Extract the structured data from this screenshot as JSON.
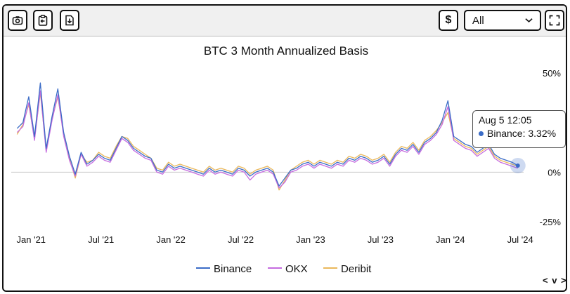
{
  "toolbar": {
    "camera_icon": "camera-icon",
    "clipboard_icon": "clipboard-copy-icon",
    "download_icon": "download-file-icon",
    "currency_label": "$",
    "select_value": "All",
    "expand_icon": "fullscreen-icon"
  },
  "tooltip": {
    "date": "Aug 5 12:05",
    "series": "Binance",
    "value": "3.32%",
    "text": "Binance: 3.32%"
  },
  "nav_label": "< v >",
  "colors": {
    "binance": "#3b6cc7",
    "okx": "#c56bdf",
    "deribit": "#eab85b",
    "zero_line": "#c8c8c8"
  },
  "chart_data": {
    "type": "line",
    "title": "BTC 3 Month Annualized Basis",
    "xlabel": "",
    "ylabel": "",
    "x_ticks": [
      "Jan '21",
      "Jul '21",
      "Jan '22",
      "Jul '22",
      "Jan '23",
      "Jul '23",
      "Jan '24",
      "Jul '24"
    ],
    "x_tick_positions": [
      0,
      6,
      12,
      18,
      24,
      30,
      36,
      42
    ],
    "y_ticks": [
      "50%",
      "0%",
      "-25%"
    ],
    "y_tick_values": [
      50,
      0,
      -25
    ],
    "ylim": [
      -25,
      52
    ],
    "xlim": [
      -0.5,
      43.8
    ],
    "legend": [
      "Binance",
      "OKX",
      "Deribit"
    ],
    "legend_position": "bottom-center",
    "x": [
      0,
      0.5,
      1,
      1.5,
      2,
      2.5,
      3,
      3.5,
      4,
      4.5,
      5,
      5.5,
      6,
      6.5,
      7,
      7.5,
      8,
      8.5,
      9,
      9.5,
      10,
      10.5,
      11,
      11.5,
      12,
      12.5,
      13,
      13.5,
      14,
      14.5,
      15,
      15.5,
      16,
      16.5,
      17,
      17.5,
      18,
      18.5,
      19,
      19.5,
      20,
      20.5,
      21,
      21.5,
      22,
      22.5,
      23,
      23.5,
      24,
      24.5,
      25,
      25.5,
      26,
      26.5,
      27,
      27.5,
      28,
      28.5,
      29,
      29.5,
      30,
      30.5,
      31,
      31.5,
      32,
      32.5,
      33,
      33.5,
      34,
      34.5,
      35,
      35.5,
      36,
      36.5,
      37,
      37.5,
      38,
      38.5,
      39,
      39.5,
      40,
      40.5,
      41,
      41.5,
      42,
      42.5,
      43
    ],
    "series": [
      {
        "name": "Binance",
        "values": [
          22,
          25,
          38,
          18,
          45,
          12,
          28,
          42,
          20,
          8,
          -1,
          10,
          4,
          6,
          9,
          7,
          6,
          12,
          18,
          16,
          12,
          10,
          8,
          7,
          1,
          0,
          4,
          2,
          3,
          2,
          1,
          0,
          -1,
          2,
          0,
          1,
          0,
          -1,
          2,
          1,
          -2,
          0,
          1,
          2,
          0,
          -7,
          -3,
          1,
          2,
          4,
          5,
          3,
          5,
          4,
          3,
          5,
          4,
          7,
          6,
          8,
          7,
          5,
          6,
          8,
          4,
          9,
          12,
          11,
          14,
          10,
          15,
          17,
          20,
          26,
          36,
          18,
          16,
          14,
          13,
          10,
          12,
          14,
          9,
          7,
          6,
          5,
          3.32
        ]
      },
      {
        "name": "OKX",
        "values": [
          20,
          23,
          35,
          16,
          41,
          10,
          26,
          39,
          18,
          6,
          -2,
          9,
          3,
          5,
          8,
          6,
          5,
          11,
          17,
          15,
          11,
          9,
          7,
          6,
          0,
          -1,
          3,
          1,
          2,
          1,
          0,
          -1,
          -2,
          1,
          -1,
          0,
          -1,
          -2,
          1,
          0,
          -4,
          -1,
          0,
          1,
          -1,
          -8,
          -5,
          0,
          1,
          3,
          4,
          2,
          4,
          3,
          2,
          4,
          3,
          6,
          5,
          7,
          6,
          4,
          5,
          7,
          3,
          8,
          11,
          10,
          13,
          9,
          14,
          16,
          19,
          24,
          33,
          16,
          14,
          12,
          11,
          8,
          10,
          12,
          7,
          5,
          4,
          3,
          2
        ]
      },
      {
        "name": "Deribit",
        "values": [
          19,
          24,
          34,
          17,
          40,
          11,
          27,
          38,
          19,
          7,
          -3,
          9,
          5,
          6,
          10,
          8,
          7,
          13,
          18,
          17,
          13,
          11,
          9,
          7,
          2,
          1,
          5,
          3,
          4,
          3,
          2,
          1,
          0,
          3,
          1,
          2,
          1,
          0,
          3,
          2,
          -1,
          1,
          2,
          3,
          1,
          -9,
          -4,
          1,
          3,
          5,
          6,
          4,
          6,
          5,
          4,
          6,
          5,
          8,
          7,
          9,
          8,
          6,
          7,
          9,
          5,
          10,
          13,
          12,
          15,
          11,
          16,
          18,
          21,
          25,
          30,
          17,
          15,
          13,
          12,
          9,
          11,
          13,
          8,
          6,
          5,
          4,
          3
        ]
      }
    ],
    "highlight_point": {
      "series": "Binance",
      "x": 43,
      "y": 3.32
    }
  }
}
